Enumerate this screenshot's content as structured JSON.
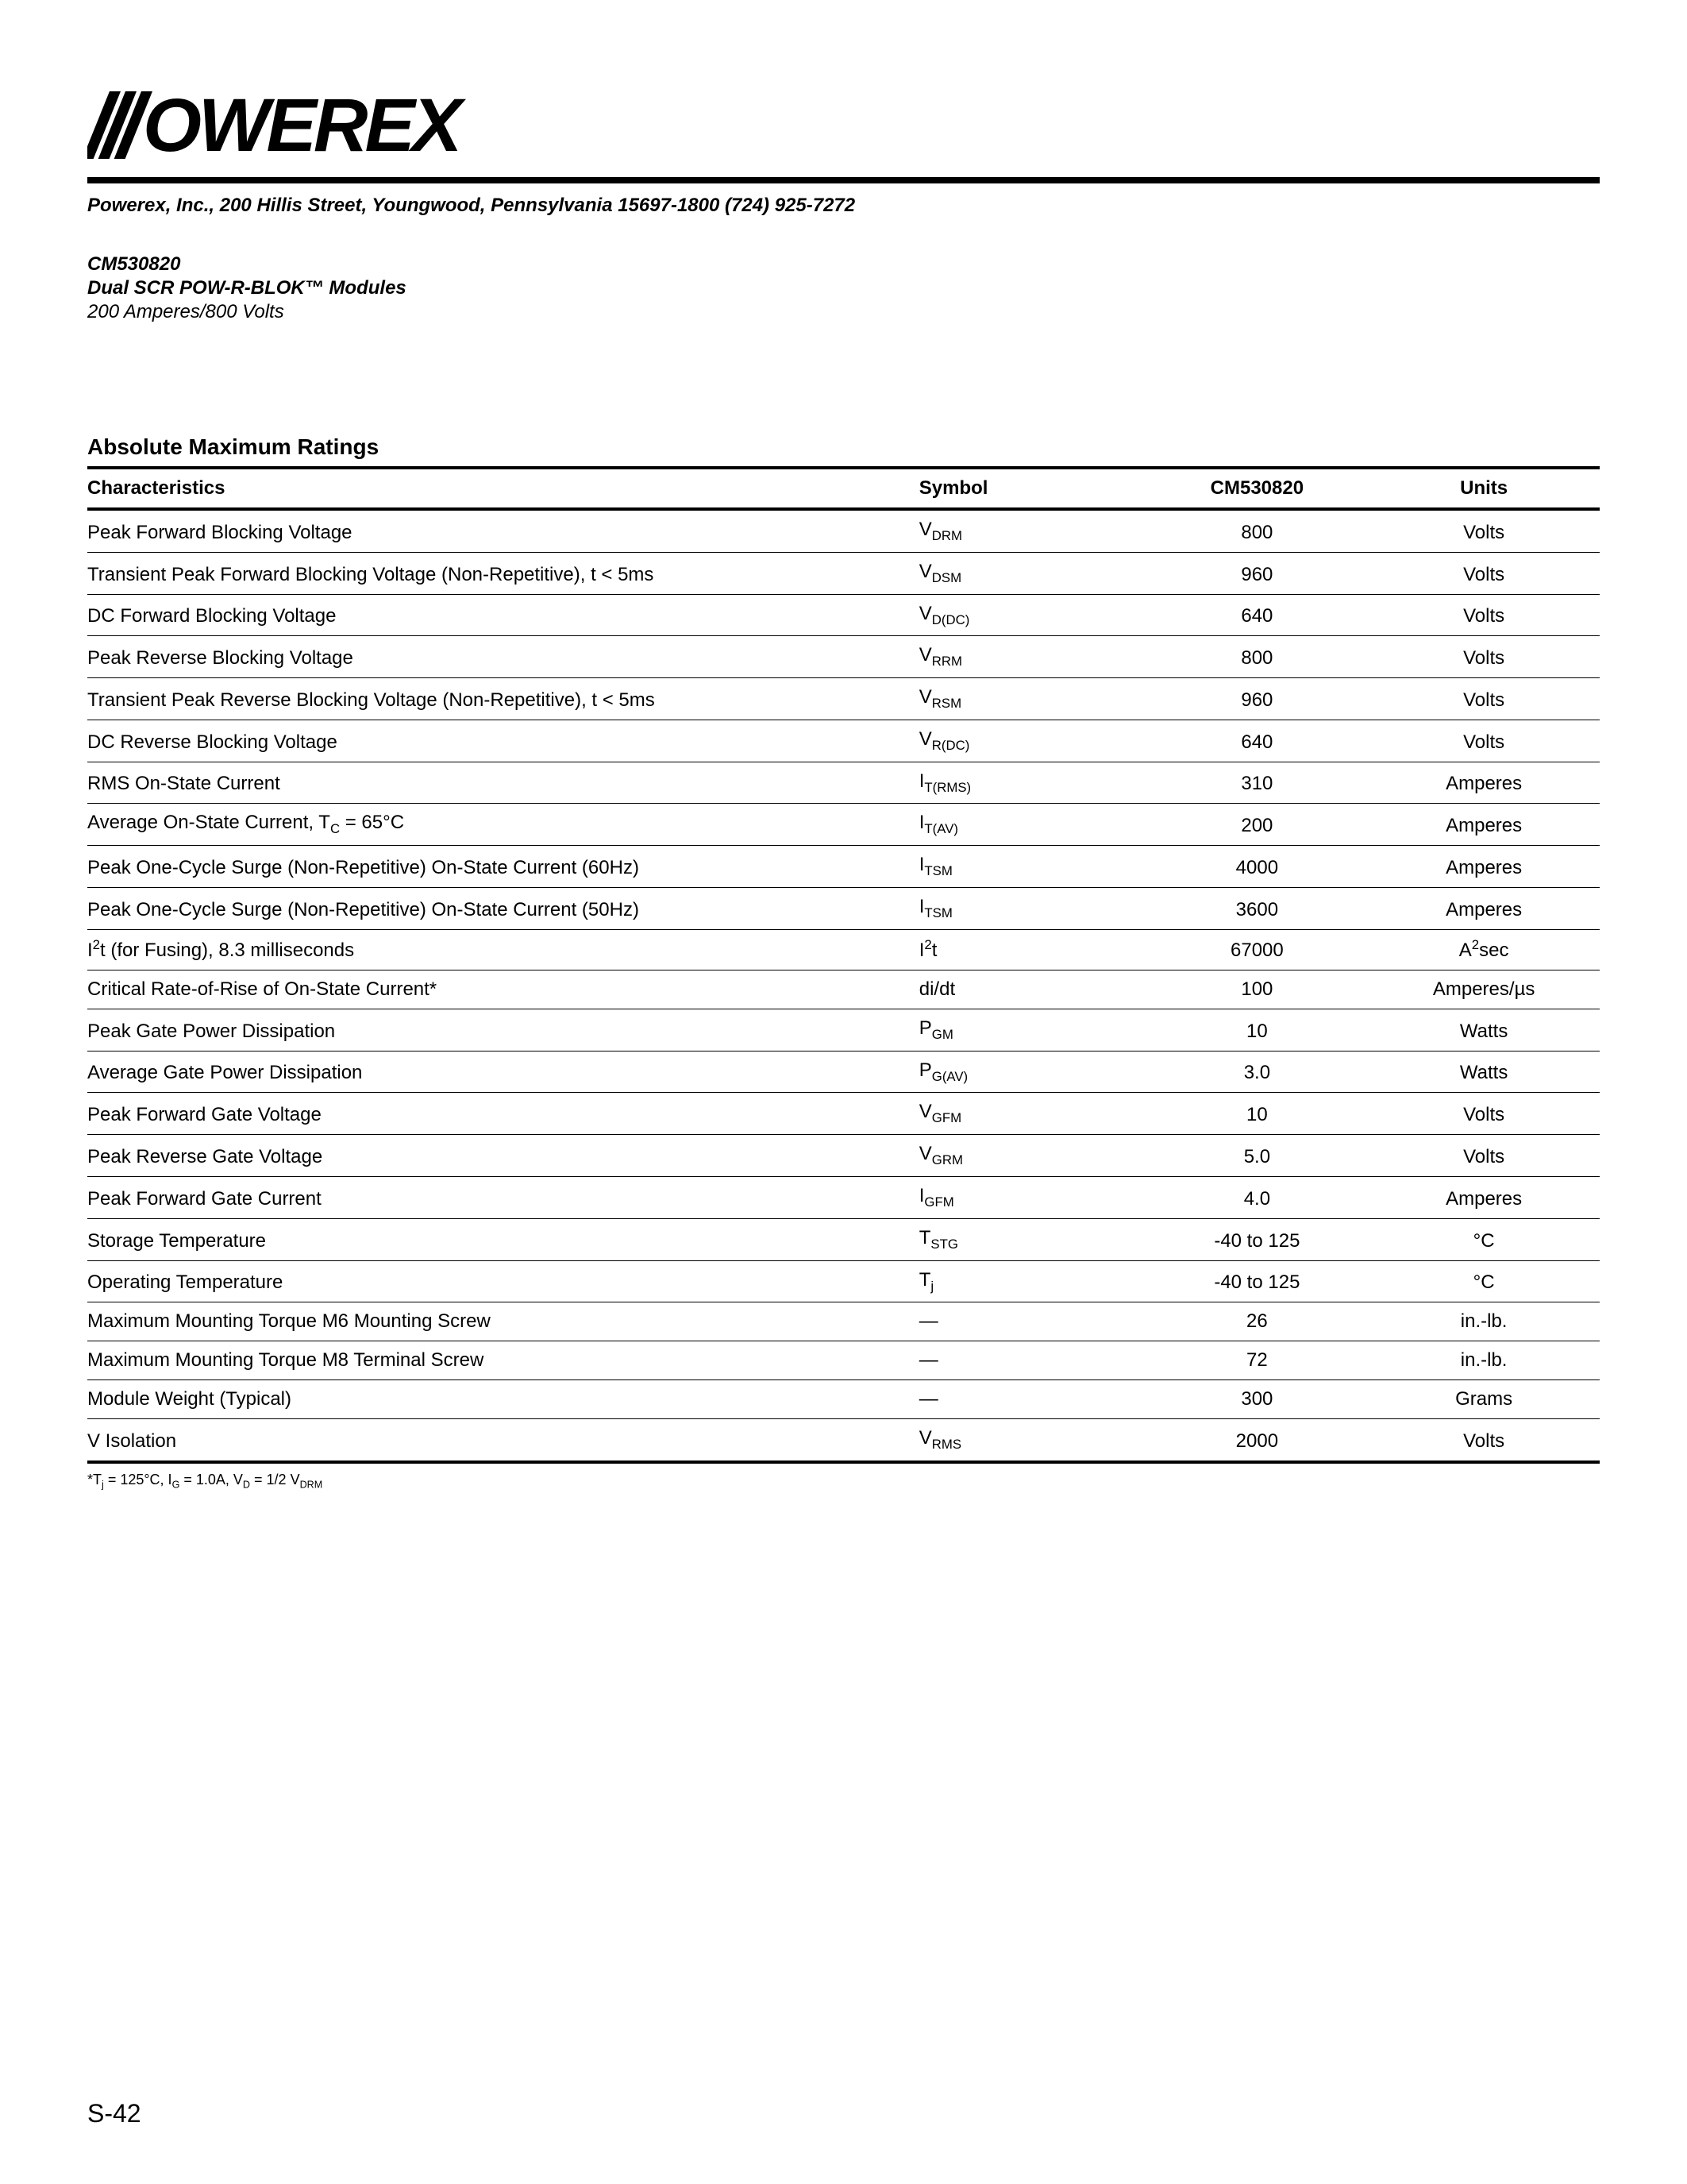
{
  "header": {
    "company_line": "Powerex, Inc., 200 Hillis Street, Youngwood, Pennsylvania 15697-1800 (724) 925-7272",
    "part_no": "CM530820",
    "module_name": "Dual SCR POW-R-BLOK™ Modules",
    "rating_line": "200 Amperes/800 Volts"
  },
  "table": {
    "section_title": "Absolute Maximum Ratings",
    "columns": {
      "characteristics": "Characteristics",
      "symbol": "Symbol",
      "value": "CM530820",
      "units": "Units"
    },
    "rows": [
      {
        "char": "Peak Forward Blocking Voltage",
        "sym_main": "V",
        "sym_sub": "DRM",
        "val": "800",
        "unit": "Volts"
      },
      {
        "char": "Transient Peak Forward Blocking Voltage (Non-Repetitive), t < 5ms",
        "sym_main": "V",
        "sym_sub": "DSM",
        "val": "960",
        "unit": "Volts"
      },
      {
        "char": "DC Forward Blocking Voltage",
        "sym_main": "V",
        "sym_sub": "D(DC)",
        "val": "640",
        "unit": "Volts"
      },
      {
        "char": "Peak Reverse Blocking Voltage",
        "sym_main": "V",
        "sym_sub": "RRM",
        "val": "800",
        "unit": "Volts"
      },
      {
        "char": "Transient Peak Reverse Blocking Voltage (Non-Repetitive), t < 5ms",
        "sym_main": "V",
        "sym_sub": "RSM",
        "val": "960",
        "unit": "Volts"
      },
      {
        "char": "DC Reverse Blocking Voltage",
        "sym_main": "V",
        "sym_sub": "R(DC)",
        "val": "640",
        "unit": "Volts"
      },
      {
        "char": "RMS On-State Current",
        "sym_main": "I",
        "sym_sub": "T(RMS)",
        "val": "310",
        "unit": "Amperes"
      },
      {
        "char_html": "Average On-State Current, T<sub>C</sub> = 65°C",
        "sym_main": "I",
        "sym_sub": "T(AV)",
        "val": "200",
        "unit": "Amperes"
      },
      {
        "char": "Peak One-Cycle Surge (Non-Repetitive) On-State Current (60Hz)",
        "sym_main": "I",
        "sym_sub": "TSM",
        "val": "4000",
        "unit": "Amperes"
      },
      {
        "char": "Peak One-Cycle Surge (Non-Repetitive) On-State Current (50Hz)",
        "sym_main": "I",
        "sym_sub": "TSM",
        "val": "3600",
        "unit": "Amperes"
      },
      {
        "char_html": "I<sup>2</sup>t (for Fusing), 8.3 milliseconds",
        "sym_html": "I<sup>2</sup>t",
        "val": "67000",
        "unit_html": "A<sup>2</sup>sec"
      },
      {
        "char": "Critical Rate-of-Rise of On-State Current*",
        "sym_plain": "di/dt",
        "val": "100",
        "unit": "Amperes/µs"
      },
      {
        "char": "Peak Gate Power Dissipation",
        "sym_main": "P",
        "sym_sub": "GM",
        "val": "10",
        "unit": "Watts"
      },
      {
        "char": "Average Gate Power Dissipation",
        "sym_main": "P",
        "sym_sub": "G(AV)",
        "val": "3.0",
        "unit": "Watts"
      },
      {
        "char": "Peak Forward Gate Voltage",
        "sym_main": "V",
        "sym_sub": "GFM",
        "val": "10",
        "unit": "Volts"
      },
      {
        "char": "Peak Reverse Gate Voltage",
        "sym_main": "V",
        "sym_sub": "GRM",
        "val": "5.0",
        "unit": "Volts"
      },
      {
        "char": "Peak Forward Gate Current",
        "sym_main": "I",
        "sym_sub": "GFM",
        "val": "4.0",
        "unit": "Amperes"
      },
      {
        "char": "Storage Temperature",
        "sym_main": "T",
        "sym_sub": "STG",
        "val": "-40 to 125",
        "unit": "°C"
      },
      {
        "char": "Operating Temperature",
        "sym_main": "T",
        "sym_sub": "j",
        "val": "-40 to 125",
        "unit": "°C"
      },
      {
        "char": "Maximum Mounting Torque M6 Mounting Screw",
        "sym_plain": "—",
        "val": "26",
        "unit": "in.-lb."
      },
      {
        "char": "Maximum Mounting Torque M8 Terminal Screw",
        "sym_plain": "—",
        "val": "72",
        "unit": "in.-lb."
      },
      {
        "char": "Module Weight (Typical)",
        "sym_plain": "—",
        "val": "300",
        "unit": "Grams"
      },
      {
        "char": "V Isolation",
        "sym_main": "V",
        "sym_sub": "RMS",
        "val": "2000",
        "unit": "Volts"
      }
    ],
    "footnote_html": "*T<sub>j</sub> = 125°C, I<sub>G</sub> = 1.0A, V<sub>D</sub> = 1/2 V<sub>DRM</sub>"
  },
  "page_number": "S-42"
}
